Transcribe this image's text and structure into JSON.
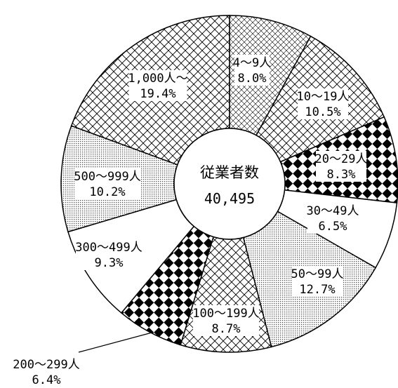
{
  "chart_data": {
    "type": "pie",
    "center_title": "従業者数",
    "center_value": "40,495",
    "slices": [
      {
        "label": "4～9人",
        "percent_label": "8.0%",
        "value": 8.0,
        "pattern": "cross-light"
      },
      {
        "label": "10～19人",
        "percent_label": "10.5%",
        "value": 10.5,
        "pattern": "cross"
      },
      {
        "label": "20～29人",
        "percent_label": "8.3%",
        "value": 8.3,
        "pattern": "checker"
      },
      {
        "label": "30～49人",
        "percent_label": "6.5%",
        "value": 6.5,
        "pattern": "none"
      },
      {
        "label": "50～99人",
        "percent_label": "12.7%",
        "value": 12.7,
        "pattern": "dots"
      },
      {
        "label": "100～199人",
        "percent_label": "8.7%",
        "value": 8.7,
        "pattern": "cross"
      },
      {
        "label": "200～299人",
        "percent_label": "6.4%",
        "value": 6.4,
        "pattern": "checker"
      },
      {
        "label": "300～499人",
        "percent_label": "9.3%",
        "value": 9.3,
        "pattern": "none"
      },
      {
        "label": "500～999人",
        "percent_label": "10.2%",
        "value": 10.2,
        "pattern": "dots"
      },
      {
        "label": "1,000人～",
        "percent_label": "19.4%",
        "value": 19.4,
        "pattern": "cross"
      }
    ]
  }
}
